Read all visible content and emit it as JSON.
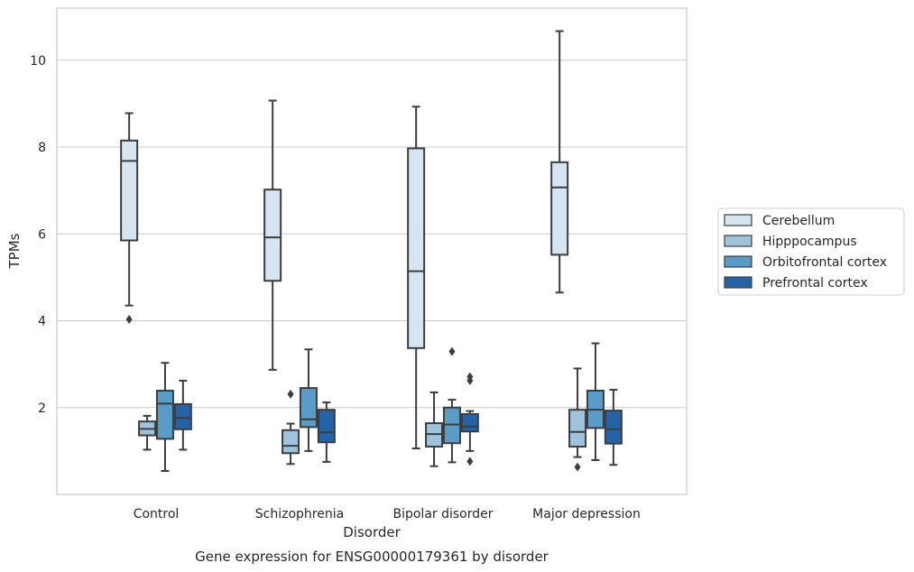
{
  "chart_data": {
    "type": "box",
    "title": "",
    "caption": "Gene expression for ENSG00000179361 by disorder",
    "xlabel": "Disorder",
    "ylabel": "TPMs",
    "ylim": [
      0,
      11.2
    ],
    "yticks": [
      2,
      4,
      6,
      8,
      10
    ],
    "grid": "horizontal",
    "legend_position": "right",
    "categories": [
      "Control",
      "Schizophrenia",
      "Bipolar disorder",
      "Major depression"
    ],
    "series": [
      {
        "name": "Cerebellum",
        "color": "#d6e5f2",
        "boxes": [
          {
            "whisker_low": 4.35,
            "q1": 5.85,
            "median": 7.68,
            "q3": 8.15,
            "whisker_high": 8.78,
            "outliers": [
              4.03
            ]
          },
          {
            "whisker_low": 2.87,
            "q1": 4.92,
            "median": 5.92,
            "q3": 7.02,
            "whisker_high": 9.07,
            "outliers": []
          },
          {
            "whisker_low": 1.06,
            "q1": 3.37,
            "median": 5.14,
            "q3": 7.97,
            "whisker_high": 8.93,
            "outliers": []
          },
          {
            "whisker_low": 4.65,
            "q1": 5.52,
            "median": 7.07,
            "q3": 7.65,
            "whisker_high": 10.67,
            "outliers": []
          }
        ]
      },
      {
        "name": "Hipppocampus",
        "color": "#9dc3dd",
        "boxes": [
          {
            "whisker_low": 1.03,
            "q1": 1.36,
            "median": 1.51,
            "q3": 1.68,
            "whisker_high": 1.81,
            "outliers": []
          },
          {
            "whisker_low": 0.7,
            "q1": 0.95,
            "median": 1.12,
            "q3": 1.48,
            "whisker_high": 1.63,
            "outliers": [
              2.31
            ]
          },
          {
            "whisker_low": 0.65,
            "q1": 1.1,
            "median": 1.39,
            "q3": 1.64,
            "whisker_high": 2.35,
            "outliers": []
          },
          {
            "whisker_low": 0.86,
            "q1": 1.1,
            "median": 1.44,
            "q3": 1.95,
            "whisker_high": 2.9,
            "outliers": [
              0.63
            ]
          }
        ]
      },
      {
        "name": "Orbitofrontal cortex",
        "color": "#5a9cc8",
        "boxes": [
          {
            "whisker_low": 0.54,
            "q1": 1.28,
            "median": 2.09,
            "q3": 2.39,
            "whisker_high": 3.03,
            "outliers": []
          },
          {
            "whisker_low": 1.0,
            "q1": 1.55,
            "median": 1.73,
            "q3": 2.45,
            "whisker_high": 3.34,
            "outliers": []
          },
          {
            "whisker_low": 0.74,
            "q1": 1.18,
            "median": 1.61,
            "q3": 2.0,
            "whisker_high": 2.18,
            "outliers": [
              3.29
            ]
          },
          {
            "whisker_low": 0.79,
            "q1": 1.53,
            "median": 1.95,
            "q3": 2.39,
            "whisker_high": 3.48,
            "outliers": []
          }
        ]
      },
      {
        "name": "Prefrontal cortex",
        "color": "#2563a8",
        "boxes": [
          {
            "whisker_low": 1.03,
            "q1": 1.5,
            "median": 1.76,
            "q3": 2.08,
            "whisker_high": 2.62,
            "outliers": []
          },
          {
            "whisker_low": 0.75,
            "q1": 1.2,
            "median": 1.43,
            "q3": 1.95,
            "whisker_high": 2.12,
            "outliers": []
          },
          {
            "whisker_low": 1.0,
            "q1": 1.45,
            "median": 1.56,
            "q3": 1.85,
            "whisker_high": 1.92,
            "outliers": [
              2.62,
              2.71,
              0.76
            ]
          },
          {
            "whisker_low": 0.68,
            "q1": 1.17,
            "median": 1.5,
            "q3": 1.93,
            "whisker_high": 2.41,
            "outliers": []
          }
        ]
      }
    ]
  }
}
